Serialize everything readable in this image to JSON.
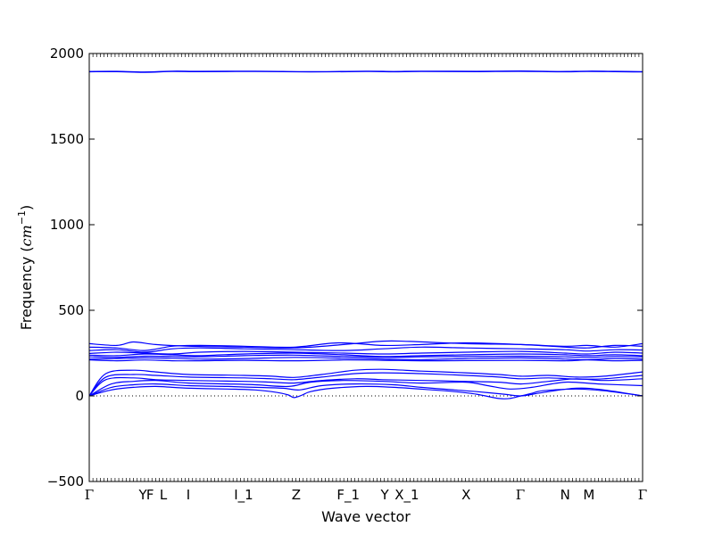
{
  "chart_data": {
    "type": "line",
    "title": "",
    "xlabel": "Wave vector",
    "ylabel_text": "Frequency",
    "ylabel_unit_base": "cm",
    "ylabel_unit_exp": "−1",
    "ylim": [
      -500,
      2000
    ],
    "xlim": [
      0,
      1
    ],
    "yticks": [
      -500,
      0,
      500,
      1000,
      1500,
      2000
    ],
    "ytick_labels": [
      "−500",
      "0",
      "500",
      "1000",
      "1500",
      "2000"
    ],
    "zero_line": true,
    "line_color": "#0000ff",
    "high_points": [
      {
        "label": "Γ",
        "x": 0.0
      },
      {
        "label": "Y",
        "x": 0.097
      },
      {
        "label": "F",
        "x": 0.11
      },
      {
        "label": "L",
        "x": 0.134
      },
      {
        "label": "I",
        "x": 0.179
      },
      {
        "label": "I_1",
        "x": 0.279
      },
      {
        "label": "Z",
        "x": 0.374
      },
      {
        "label": "F_1",
        "x": 0.468
      },
      {
        "label": "Y",
        "x": 0.534
      },
      {
        "label": "X_1",
        "x": 0.574
      },
      {
        "label": "X",
        "x": 0.681
      },
      {
        "label": "Γ",
        "x": 0.779
      },
      {
        "label": "N",
        "x": 0.86
      },
      {
        "label": "M",
        "x": 0.903
      },
      {
        "label": "Γ",
        "x": 1.0
      }
    ],
    "series": [
      {
        "x": [
          0,
          0.05,
          0.1,
          0.15,
          0.2,
          0.3,
          0.4,
          0.5,
          0.55,
          0.6,
          0.7,
          0.78,
          0.85,
          0.9,
          0.95,
          1.0
        ],
        "values": [
          1895,
          1896,
          1892,
          1897,
          1896,
          1897,
          1894,
          1897,
          1895,
          1897,
          1896,
          1898,
          1895,
          1897,
          1896,
          1894
        ]
      },
      {
        "x": [
          0,
          0.05,
          0.1,
          0.15,
          0.2,
          0.3,
          0.4,
          0.5,
          0.55,
          0.6,
          0.7,
          0.78,
          0.85,
          0.9,
          0.95,
          1.0
        ],
        "values": [
          1893,
          1894,
          1890,
          1895,
          1894,
          1895,
          1892,
          1895,
          1893,
          1895,
          1894,
          1896,
          1893,
          1895,
          1894,
          1892
        ]
      },
      {
        "x": [
          0,
          0.05,
          0.08,
          0.12,
          0.18,
          0.28,
          0.37,
          0.46,
          0.53,
          0.58,
          0.68,
          0.78,
          0.86,
          0.9,
          0.95,
          1.0
        ],
        "values": [
          305,
          295,
          315,
          300,
          290,
          285,
          280,
          300,
          320,
          318,
          305,
          300,
          290,
          295,
          285,
          305
        ]
      },
      {
        "x": [
          0,
          0.05,
          0.1,
          0.15,
          0.2,
          0.28,
          0.37,
          0.45,
          0.53,
          0.6,
          0.68,
          0.78,
          0.86,
          0.9,
          0.95,
          1.0
        ],
        "values": [
          285,
          280,
          265,
          290,
          295,
          290,
          285,
          310,
          295,
          300,
          310,
          300,
          285,
          280,
          295,
          290
        ]
      },
      {
        "x": [
          0,
          0.05,
          0.1,
          0.15,
          0.2,
          0.28,
          0.37,
          0.46,
          0.53,
          0.6,
          0.68,
          0.78,
          0.86,
          0.9,
          0.95,
          1.0
        ],
        "values": [
          265,
          270,
          255,
          275,
          280,
          275,
          270,
          265,
          275,
          285,
          280,
          275,
          270,
          262,
          270,
          268
        ]
      },
      {
        "x": [
          0,
          0.05,
          0.1,
          0.15,
          0.2,
          0.28,
          0.37,
          0.46,
          0.53,
          0.6,
          0.68,
          0.78,
          0.86,
          0.9,
          0.95,
          1.0
        ],
        "values": [
          248,
          255,
          250,
          245,
          255,
          260,
          255,
          250,
          245,
          250,
          255,
          260,
          250,
          245,
          255,
          250
        ]
      },
      {
        "x": [
          0,
          0.05,
          0.1,
          0.15,
          0.2,
          0.28,
          0.37,
          0.46,
          0.53,
          0.6,
          0.68,
          0.78,
          0.86,
          0.9,
          0.95,
          1.0
        ],
        "values": [
          238,
          235,
          245,
          240,
          235,
          245,
          250,
          240,
          230,
          235,
          240,
          245,
          240,
          235,
          240,
          235
        ]
      },
      {
        "x": [
          0,
          0.05,
          0.1,
          0.15,
          0.2,
          0.28,
          0.37,
          0.46,
          0.53,
          0.6,
          0.68,
          0.78,
          0.86,
          0.9,
          0.95,
          1.0
        ],
        "values": [
          228,
          225,
          232,
          230,
          228,
          235,
          238,
          230,
          225,
          228,
          230,
          232,
          228,
          225,
          230,
          228
        ]
      },
      {
        "x": [
          0,
          0.05,
          0.1,
          0.15,
          0.2,
          0.28,
          0.37,
          0.46,
          0.53,
          0.6,
          0.68,
          0.78,
          0.86,
          0.9,
          0.95,
          1.0
        ],
        "values": [
          215,
          218,
          222,
          220,
          215,
          218,
          225,
          220,
          215,
          212,
          218,
          222,
          215,
          212,
          218,
          215
        ]
      },
      {
        "x": [
          0,
          0.05,
          0.1,
          0.15,
          0.2,
          0.28,
          0.37,
          0.46,
          0.53,
          0.6,
          0.68,
          0.78,
          0.86,
          0.9,
          0.95,
          1.0
        ],
        "values": [
          210,
          205,
          210,
          205,
          205,
          208,
          205,
          210,
          208,
          205,
          206,
          208,
          205,
          210,
          205,
          208
        ]
      },
      {
        "x": [
          0,
          0.03,
          0.08,
          0.12,
          0.18,
          0.28,
          0.33,
          0.37,
          0.42,
          0.48,
          0.53,
          0.6,
          0.68,
          0.74,
          0.78,
          0.83,
          0.88,
          0.93,
          1.0
        ],
        "values": [
          0,
          130,
          150,
          140,
          125,
          120,
          115,
          108,
          125,
          150,
          155,
          145,
          135,
          125,
          115,
          120,
          110,
          115,
          140
        ]
      },
      {
        "x": [
          0,
          0.03,
          0.08,
          0.12,
          0.18,
          0.28,
          0.33,
          0.37,
          0.42,
          0.48,
          0.53,
          0.6,
          0.68,
          0.74,
          0.78,
          0.83,
          0.88,
          0.93,
          1.0
        ],
        "values": [
          0,
          110,
          125,
          120,
          110,
          105,
          100,
          95,
          110,
          130,
          135,
          130,
          120,
          110,
          100,
          105,
          98,
          100,
          120
        ]
      },
      {
        "x": [
          0,
          0.03,
          0.08,
          0.12,
          0.18,
          0.28,
          0.33,
          0.37,
          0.42,
          0.48,
          0.53,
          0.6,
          0.68,
          0.74,
          0.78,
          0.83,
          0.88,
          0.93,
          1.0
        ],
        "values": [
          0,
          95,
          105,
          95,
          90,
          85,
          80,
          75,
          90,
          100,
          95,
          90,
          85,
          80,
          70,
          85,
          100,
          90,
          100
        ]
      },
      {
        "x": [
          0,
          0.04,
          0.08,
          0.12,
          0.18,
          0.25,
          0.3,
          0.36,
          0.4,
          0.46,
          0.53,
          0.6,
          0.68,
          0.72,
          0.76,
          0.8,
          0.86,
          0.92,
          1.0
        ],
        "values": [
          0,
          70,
          85,
          90,
          75,
          70,
          65,
          55,
          80,
          90,
          85,
          75,
          80,
          60,
          40,
          50,
          80,
          70,
          60
        ]
      },
      {
        "x": [
          0,
          0.04,
          0.08,
          0.12,
          0.18,
          0.25,
          0.3,
          0.35,
          0.38,
          0.42,
          0.48,
          0.55,
          0.6,
          0.66,
          0.7,
          0.75,
          0.78,
          0.82,
          0.88,
          0.93,
          1.0
        ],
        "values": [
          0,
          50,
          65,
          70,
          60,
          55,
          50,
          45,
          35,
          60,
          70,
          65,
          50,
          35,
          25,
          10,
          0,
          20,
          45,
          35,
          0
        ]
      },
      {
        "x": [
          0,
          0.04,
          0.08,
          0.12,
          0.18,
          0.25,
          0.3,
          0.34,
          0.36,
          0.37,
          0.385,
          0.4,
          0.44,
          0.5,
          0.55,
          0.62,
          0.66,
          0.7,
          0.74,
          0.76,
          0.78,
          0.8,
          0.82,
          0.88,
          0.93,
          1.0
        ],
        "values": [
          0,
          35,
          50,
          55,
          45,
          40,
          35,
          20,
          5,
          -10,
          5,
          25,
          45,
          55,
          50,
          35,
          25,
          10,
          -15,
          -15,
          0,
          15,
          30,
          40,
          30,
          0
        ]
      }
    ]
  }
}
